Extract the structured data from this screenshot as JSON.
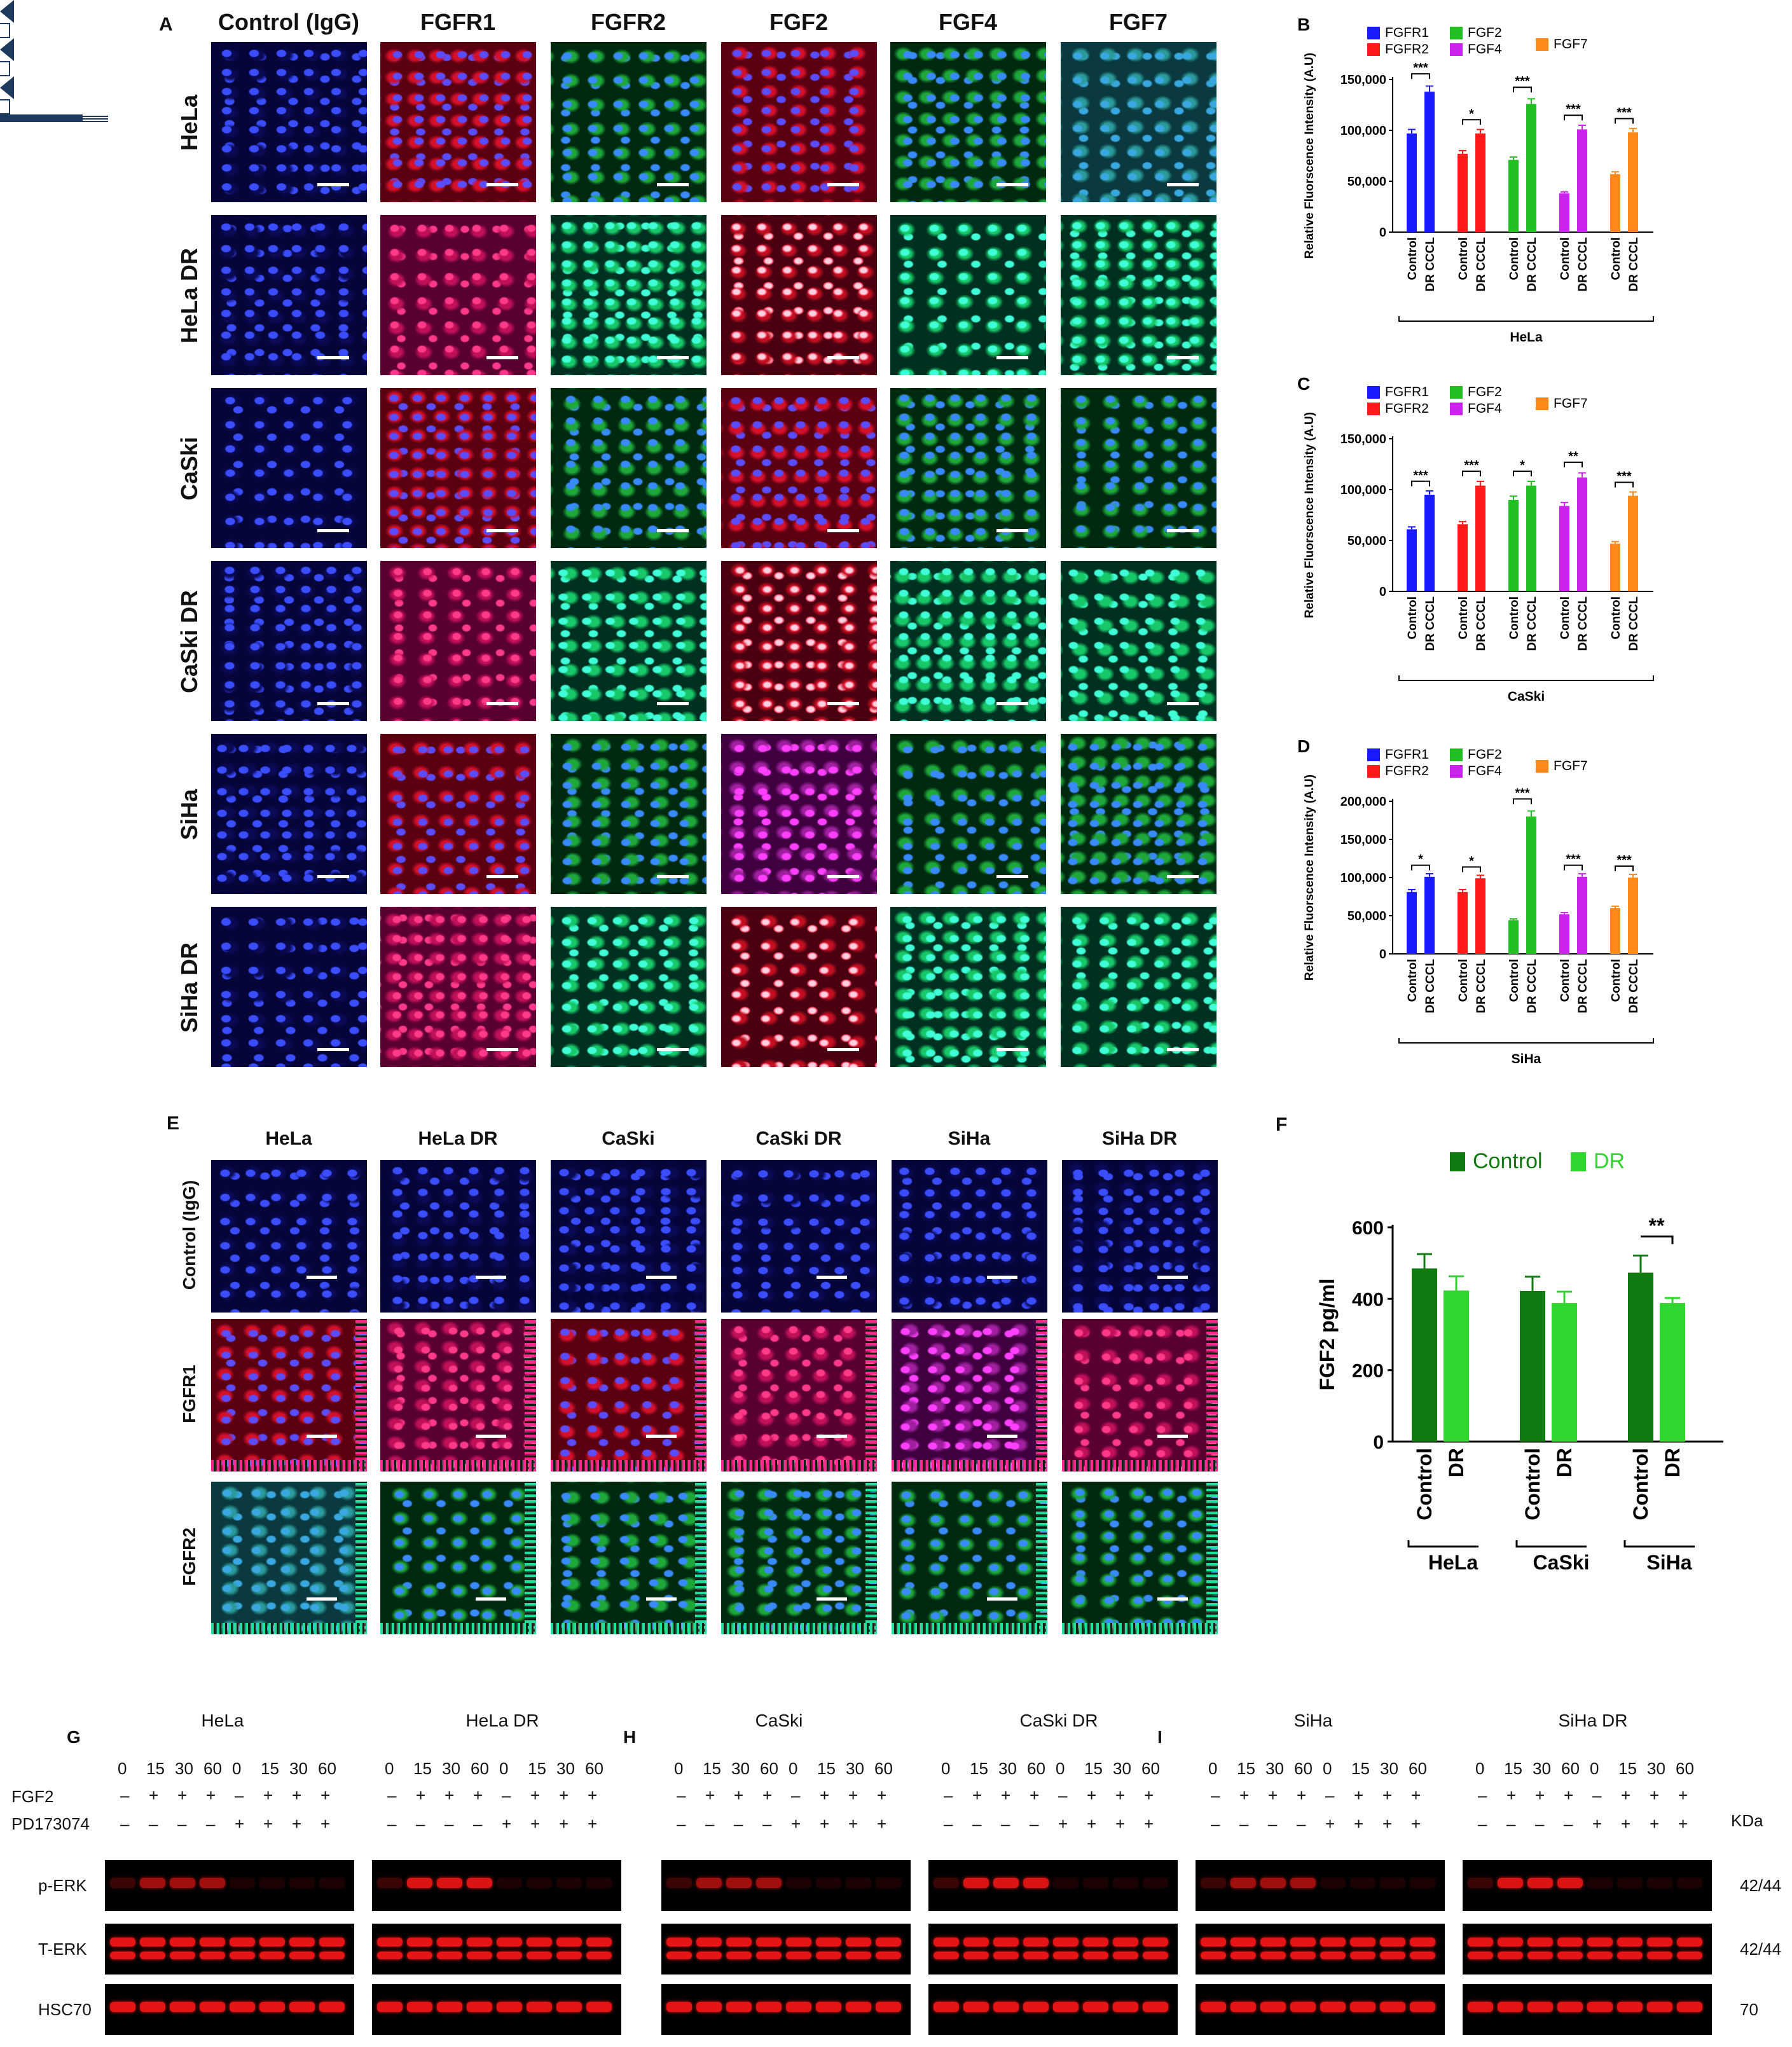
{
  "panel_A": {
    "letter": "A",
    "columns": [
      "Control (IgG)",
      "FGFR1",
      "FGFR2",
      "FGF2",
      "FGF4",
      "FGF7"
    ],
    "rows": [
      "HeLa",
      "HeLa DR",
      "CaSki",
      "CaSki DR",
      "SiHa",
      "SiHa DR"
    ]
  },
  "panel_E": {
    "letter": "E",
    "columns": [
      "HeLa",
      "HeLa DR",
      "CaSki",
      "CaSki DR",
      "SiHa",
      "SiHa DR"
    ],
    "rows": [
      "Control (IgG)",
      "FGFR1",
      "FGFR2"
    ]
  },
  "chart_data": [
    {
      "panel": "B",
      "type": "bar",
      "ylabel": "Relative Fluorscence Intensity (A.U)",
      "xlabel": "HeLa",
      "ylim": [
        0,
        150000
      ],
      "yticks": [
        "0",
        "50,000",
        "100,000",
        "150,000"
      ],
      "legend": [
        "FGFR1",
        "FGFR2",
        "FGF2",
        "FGF4",
        "FGF7"
      ],
      "categories": [
        "Control",
        "DR CCCL"
      ],
      "series": [
        {
          "name": "FGFR1",
          "values": [
            97000,
            138000
          ],
          "color": "#1a1aff",
          "sig": "***"
        },
        {
          "name": "FGFR2",
          "values": [
            77000,
            97000
          ],
          "color": "#ff1a1a",
          "sig": "*"
        },
        {
          "name": "FGF2",
          "values": [
            71000,
            126000
          ],
          "color": "#22c022",
          "sig": "***"
        },
        {
          "name": "FGF4",
          "values": [
            38000,
            101000
          ],
          "color": "#cc22ee",
          "sig": "***"
        },
        {
          "name": "FGF7",
          "values": [
            57000,
            98000
          ],
          "color": "#ff8a1a",
          "sig": "***"
        }
      ]
    },
    {
      "panel": "C",
      "type": "bar",
      "ylabel": "Relative Fluorscence Intensity (A.U)",
      "xlabel": "CaSki",
      "ylim": [
        0,
        150000
      ],
      "yticks": [
        "0",
        "50,000",
        "100,000",
        "150,000"
      ],
      "legend": [
        "FGFR1",
        "FGFR2",
        "FGF2",
        "FGF4",
        "FGF7"
      ],
      "categories": [
        "Control",
        "DR CCCL"
      ],
      "series": [
        {
          "name": "FGFR1",
          "values": [
            61000,
            95000
          ],
          "color": "#1a1aff",
          "sig": "***"
        },
        {
          "name": "FGFR2",
          "values": [
            66000,
            104000
          ],
          "color": "#ff1a1a",
          "sig": "***"
        },
        {
          "name": "FGF2",
          "values": [
            90000,
            104000
          ],
          "color": "#22c022",
          "sig": "*"
        },
        {
          "name": "FGF4",
          "values": [
            84000,
            112000
          ],
          "color": "#cc22ee",
          "sig": "**"
        },
        {
          "name": "FGF7",
          "values": [
            47000,
            94000
          ],
          "color": "#ff8a1a",
          "sig": "***"
        }
      ]
    },
    {
      "panel": "D",
      "type": "bar",
      "ylabel": "Relative Fluorscence Intensity (A.U)",
      "xlabel": "SiHa",
      "ylim": [
        0,
        200000
      ],
      "yticks": [
        "0",
        "50,000",
        "100,000",
        "150,000",
        "200,000"
      ],
      "legend": [
        "FGFR1",
        "FGFR2",
        "FGF2",
        "FGF4",
        "FGF7"
      ],
      "categories": [
        "Control",
        "DR CCCL"
      ],
      "series": [
        {
          "name": "FGFR1",
          "values": [
            81000,
            101000
          ],
          "color": "#1a1aff",
          "sig": "*"
        },
        {
          "name": "FGFR2",
          "values": [
            81000,
            99000
          ],
          "color": "#ff1a1a",
          "sig": "*"
        },
        {
          "name": "FGF2",
          "values": [
            44000,
            180000
          ],
          "color": "#22c022",
          "sig": "***"
        },
        {
          "name": "FGF4",
          "values": [
            52000,
            101000
          ],
          "color": "#cc22ee",
          "sig": "***"
        },
        {
          "name": "FGF7",
          "values": [
            60000,
            100000
          ],
          "color": "#ff8a1a",
          "sig": "***"
        }
      ]
    },
    {
      "panel": "F",
      "type": "bar",
      "ylabel": "FGF2 pg/ml",
      "ylim": [
        0,
        600
      ],
      "yticks": [
        "0",
        "200",
        "400",
        "600"
      ],
      "legend": [
        "Control",
        "DR"
      ],
      "categories": [
        "HeLa",
        "CaSki",
        "SiHa"
      ],
      "bar_labels": [
        "Control",
        "DR"
      ],
      "series": [
        {
          "name": "Control",
          "values": [
            485,
            422,
            473
          ],
          "err": [
            40,
            40,
            48
          ],
          "color": "#117a11"
        },
        {
          "name": "DR",
          "values": [
            423,
            388,
            388
          ],
          "err": [
            40,
            32,
            14
          ],
          "color": "#2ed62e"
        }
      ],
      "sig": {
        "group": "SiHa",
        "label": "**"
      }
    }
  ],
  "panel_F_letter": "F",
  "western": {
    "groups": [
      {
        "letter": "G",
        "blocks": [
          "HeLa",
          "HeLa DR"
        ]
      },
      {
        "letter": "H",
        "blocks": [
          "CaSki",
          "CaSki DR"
        ]
      },
      {
        "letter": "I",
        "blocks": [
          "SiHa",
          "SiHa DR"
        ]
      }
    ],
    "times": [
      "0",
      "15",
      "30",
      "60",
      "0",
      "15",
      "30",
      "60"
    ],
    "fgf2": [
      "–",
      "+",
      "+",
      "+",
      "–",
      "+",
      "+",
      "+"
    ],
    "pd": [
      "–",
      "–",
      "–",
      "–",
      "+",
      "+",
      "+",
      "+"
    ],
    "row_labels": {
      "fgf2": "FGF2",
      "pd": "PD173074"
    },
    "blot_rows": [
      "p-ERK",
      "T-ERK",
      "HSC70"
    ],
    "kda_header": "KDa",
    "kda": [
      "42/44",
      "42/44",
      "70"
    ],
    "arrow_icon": "left-arrow-icon"
  }
}
